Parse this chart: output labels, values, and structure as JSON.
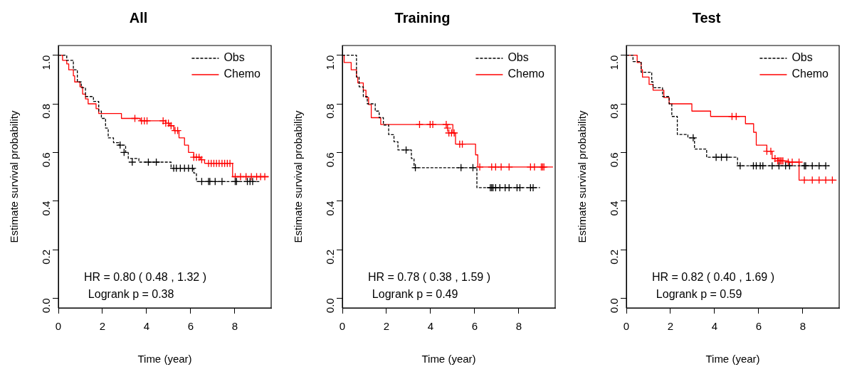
{
  "chart_data": [
    {
      "type": "step",
      "title": "All",
      "xlabel": "Time (year)",
      "ylabel": "Estimate survival probability",
      "xlim": [
        0,
        9.65
      ],
      "xticks": [
        0,
        2,
        4,
        6,
        8
      ],
      "ylim": [
        -0.04,
        1.04
      ],
      "yticks": [
        {
          "value": 0,
          "label": "0.0"
        },
        {
          "value": 0.2,
          "label": "0.2"
        },
        {
          "value": 0.4,
          "label": "0.4"
        },
        {
          "value": 0.6,
          "label": "0.6"
        },
        {
          "value": 0.8,
          "label": "0.8"
        },
        {
          "value": 1,
          "label": "1.0"
        }
      ],
      "legend": "top right",
      "grid": false,
      "annotations": [
        "HR = 0.80 ( 0.48 , 1.32 )",
        "Logrank p = 0.38"
      ],
      "series": [
        {
          "name": "Obs",
          "color": "#000000",
          "line_style": "dashed",
          "x": [
            0,
            0.38,
            0.68,
            0.86,
            1.04,
            1.23,
            1.59,
            1.83,
            1.95,
            2.14,
            2.26,
            2.5,
            2.74,
            3.05,
            3.17,
            3.65,
            5.11,
            6.14,
            6.26,
            9.11
          ],
          "values": [
            1,
            0.979,
            0.94,
            0.89,
            0.866,
            0.83,
            0.81,
            0.77,
            0.74,
            0.7,
            0.66,
            0.64,
            0.63,
            0.6,
            0.575,
            0.56,
            0.535,
            0.515,
            0.48,
            0.48
          ]
        },
        {
          "name": "Chemo",
          "color": "#ff0000",
          "line_style": "solid",
          "x": [
            0,
            0.19,
            0.38,
            0.47,
            0.68,
            0.74,
            0.98,
            1.1,
            1.23,
            1.35,
            1.71,
            1.83,
            2.86,
            3.71,
            4.87,
            5.05,
            5.23,
            5.47,
            5.72,
            5.9,
            6.14,
            6.44,
            6.63,
            7.9,
            9.54
          ],
          "values": [
            1,
            0.979,
            0.964,
            0.94,
            0.915,
            0.89,
            0.87,
            0.84,
            0.82,
            0.8,
            0.78,
            0.76,
            0.74,
            0.73,
            0.72,
            0.71,
            0.69,
            0.66,
            0.63,
            0.6,
            0.58,
            0.57,
            0.555,
            0.5,
            0.5
          ]
        },
        {
          "type": "scatter",
          "marker": "cross",
          "color": "#000000",
          "x": [
            2.8,
            2.98,
            3.35,
            4.08,
            4.44,
            5.23,
            5.35,
            5.53,
            5.72,
            5.9,
            6.08,
            6.5,
            6.81,
            6.87,
            7.11,
            7.42,
            8.02,
            8.08,
            8.57,
            8.69,
            8.81
          ],
          "values": [
            0.63,
            0.6,
            0.56,
            0.56,
            0.56,
            0.535,
            0.535,
            0.535,
            0.535,
            0.535,
            0.535,
            0.48,
            0.48,
            0.48,
            0.48,
            0.48,
            0.48,
            0.48,
            0.48,
            0.48,
            0.48
          ]
        },
        {
          "type": "scatter",
          "marker": "cross",
          "color": "#ff0000",
          "x": [
            3.47,
            3.77,
            3.9,
            4.02,
            4.75,
            4.87,
            4.99,
            5.11,
            5.29,
            5.41,
            6.14,
            6.26,
            6.38,
            6.5,
            6.81,
            6.93,
            7.05,
            7.17,
            7.29,
            7.42,
            7.54,
            7.66,
            7.78,
            8.02,
            8.26,
            8.51,
            8.75,
            8.99,
            9.17,
            9.36
          ],
          "values": [
            0.74,
            0.73,
            0.73,
            0.73,
            0.73,
            0.72,
            0.72,
            0.71,
            0.69,
            0.69,
            0.58,
            0.58,
            0.58,
            0.57,
            0.555,
            0.555,
            0.555,
            0.555,
            0.555,
            0.555,
            0.555,
            0.555,
            0.555,
            0.5,
            0.5,
            0.5,
            0.5,
            0.5,
            0.5,
            0.5
          ]
        }
      ]
    },
    {
      "type": "step",
      "title": "Training",
      "xlabel": "Time (year)",
      "ylabel": "Estimate survival probability",
      "xlim": [
        0,
        9.65
      ],
      "xticks": [
        0,
        2,
        4,
        6,
        8
      ],
      "ylim": [
        -0.04,
        1.04
      ],
      "yticks": [
        {
          "value": 0,
          "label": "0.0"
        },
        {
          "value": 0.2,
          "label": "0.2"
        },
        {
          "value": 0.4,
          "label": "0.4"
        },
        {
          "value": 0.6,
          "label": "0.6"
        },
        {
          "value": 0.8,
          "label": "0.8"
        },
        {
          "value": 1,
          "label": "1.0"
        }
      ],
      "legend": "top right",
      "grid": false,
      "annotations": [
        "HR = 0.78 ( 0.38 , 1.59 )",
        "Logrank p = 0.49"
      ],
      "series": [
        {
          "name": "Obs",
          "color": "#000000",
          "line_style": "dashed",
          "x": [
            0,
            0.64,
            0.76,
            0.95,
            1.13,
            1.49,
            1.67,
            1.86,
            2.1,
            2.34,
            2.52,
            3.13,
            3.25,
            6.1,
            8.96
          ],
          "values": [
            1,
            0.91,
            0.87,
            0.83,
            0.8,
            0.77,
            0.743,
            0.713,
            0.673,
            0.644,
            0.61,
            0.575,
            0.537,
            0.455,
            0.455
          ]
        },
        {
          "name": "Chemo",
          "color": "#ff0000",
          "line_style": "solid",
          "x": [
            0,
            0.08,
            0.4,
            0.64,
            0.7,
            0.95,
            1.07,
            1.19,
            1.31,
            1.74,
            5.01,
            5.13,
            6.04,
            6.14,
            9.55
          ],
          "values": [
            1,
            0.97,
            0.94,
            0.91,
            0.886,
            0.856,
            0.826,
            0.797,
            0.743,
            0.715,
            0.68,
            0.634,
            0.59,
            0.54,
            0.54
          ]
        },
        {
          "type": "scatter",
          "marker": "cross",
          "color": "#000000",
          "x": [
            2.89,
            3.31,
            5.38,
            5.92,
            6.71,
            6.77,
            6.83,
            6.95,
            7.14,
            7.38,
            7.56,
            7.92,
            8.05,
            8.53,
            8.65
          ],
          "values": [
            0.61,
            0.537,
            0.537,
            0.537,
            0.455,
            0.455,
            0.455,
            0.455,
            0.455,
            0.455,
            0.455,
            0.455,
            0.455,
            0.455,
            0.455
          ]
        },
        {
          "type": "scatter",
          "marker": "cross",
          "color": "#ff0000",
          "x": [
            3.5,
            3.98,
            4.1,
            4.71,
            4.77,
            4.83,
            4.95,
            5.07,
            5.32,
            5.44,
            6.23,
            6.77,
            6.95,
            7.2,
            7.56,
            8.53,
            8.71,
            9.02,
            9.08,
            9.14
          ],
          "values": [
            0.715,
            0.715,
            0.715,
            0.715,
            0.7,
            0.68,
            0.68,
            0.68,
            0.634,
            0.634,
            0.54,
            0.54,
            0.54,
            0.54,
            0.54,
            0.54,
            0.54,
            0.54,
            0.54,
            0.54
          ]
        }
      ]
    },
    {
      "type": "step",
      "title": "Test",
      "xlabel": "Time (year)",
      "ylabel": "Estimate survival probability",
      "xlim": [
        0,
        9.65
      ],
      "xticks": [
        0,
        2,
        4,
        6,
        8
      ],
      "ylim": [
        -0.04,
        1.04
      ],
      "yticks": [
        {
          "value": 0,
          "label": "0.0"
        },
        {
          "value": 0.2,
          "label": "0.2"
        },
        {
          "value": 0.4,
          "label": "0.4"
        },
        {
          "value": 0.6,
          "label": "0.6"
        },
        {
          "value": 0.8,
          "label": "0.8"
        },
        {
          "value": 1,
          "label": "1.0"
        }
      ],
      "legend": "top right",
      "grid": false,
      "annotations": [
        "HR = 0.82 ( 0.40 , 1.69 )",
        "Logrank p = 0.59"
      ],
      "series": [
        {
          "name": "Obs",
          "color": "#000000",
          "line_style": "dashed",
          "x": [
            0,
            0.3,
            0.67,
            1.15,
            1.21,
            1.64,
            1.94,
            2.06,
            2.31,
            2.79,
            3.09,
            3.64,
            5.04,
            9.22
          ],
          "values": [
            1,
            0.974,
            0.93,
            0.89,
            0.866,
            0.83,
            0.8,
            0.748,
            0.674,
            0.66,
            0.614,
            0.58,
            0.545,
            0.545
          ]
        },
        {
          "name": "Chemo",
          "color": "#ff0000",
          "line_style": "solid",
          "x": [
            0,
            0.49,
            0.67,
            0.73,
            1.03,
            1.21,
            1.7,
            1.94,
            2.97,
            3.82,
            5.4,
            5.77,
            5.89,
            6.37,
            6.61,
            6.86,
            7.36,
            7.83,
            9.53
          ],
          "values": [
            1,
            0.97,
            0.94,
            0.91,
            0.88,
            0.856,
            0.826,
            0.8,
            0.77,
            0.748,
            0.718,
            0.683,
            0.63,
            0.605,
            0.575,
            0.565,
            0.56,
            0.486,
            0.486
          ]
        },
        {
          "type": "scatter",
          "marker": "cross",
          "color": "#000000",
          "x": [
            3.03,
            4.07,
            4.31,
            4.55,
            5.16,
            5.76,
            5.89,
            6.07,
            6.19,
            6.61,
            6.92,
            7.22,
            7.4,
            8.07,
            8.13,
            8.43,
            8.74,
            9.04
          ],
          "values": [
            0.66,
            0.58,
            0.58,
            0.58,
            0.545,
            0.545,
            0.545,
            0.545,
            0.545,
            0.545,
            0.545,
            0.545,
            0.545,
            0.545,
            0.545,
            0.545,
            0.545,
            0.545
          ]
        },
        {
          "type": "scatter",
          "marker": "cross",
          "color": "#ff0000",
          "x": [
            4.79,
            4.98,
            6.37,
            6.55,
            6.74,
            6.86,
            6.92,
            6.98,
            7.04,
            7.1,
            7.34,
            7.52,
            7.83,
            8.07,
            8.43,
            8.74,
            9.04,
            9.34
          ],
          "values": [
            0.748,
            0.748,
            0.605,
            0.605,
            0.575,
            0.565,
            0.565,
            0.565,
            0.565,
            0.565,
            0.56,
            0.56,
            0.56,
            0.486,
            0.486,
            0.486,
            0.486,
            0.486
          ]
        }
      ]
    }
  ]
}
